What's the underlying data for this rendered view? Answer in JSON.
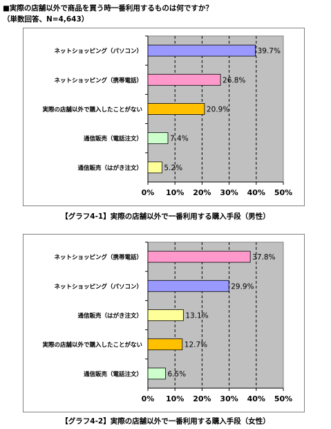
{
  "header": {
    "title": "■実際の店舗以外で商品を買う時一番利用するものは何ですか？",
    "subtitle": "（単数回答、N=4,643）"
  },
  "captions": {
    "male": "【グラフ4-1】実際の店舗以外で一番利用する購入手段（男性）",
    "female": "【グラフ4-2】実際の店舗以外で一番利用する購入手段（女性）"
  },
  "colors": {
    "plot_bg": "#c0c0c0",
    "pc": "#9999ff",
    "mobile": "#ff99cc",
    "none": "#ffc000",
    "phone_order": "#ccffcc",
    "postcard_order": "#ffff99"
  },
  "chart_data": [
    {
      "type": "bar",
      "orientation": "horizontal",
      "title": "【グラフ4-1】実際の店舗以外で一番利用する購入手段（男性）",
      "categories": [
        "ネットショッピング（パソコン）",
        "ネットショッピング（携帯電話）",
        "実際の店舗以外で購入したことがない",
        "通信販売（電話注文）",
        "通信販売（はがき注文）"
      ],
      "values": [
        39.7,
        26.8,
        20.9,
        7.4,
        5.2
      ],
      "value_labels": [
        "39.7%",
        "26.8%",
        "20.9%",
        "7.4%",
        "5.2%"
      ],
      "bar_colors": [
        "#9999ff",
        "#ff99cc",
        "#ffc000",
        "#ccffcc",
        "#ffff99"
      ],
      "xlim": [
        0,
        50
      ],
      "xticks": [
        "0%",
        "10%",
        "20%",
        "30%",
        "40%",
        "50%"
      ],
      "grid": true,
      "grid_style": "dashed vertical"
    },
    {
      "type": "bar",
      "orientation": "horizontal",
      "title": "【グラフ4-2】実際の店舗以外で一番利用する購入手段（女性）",
      "categories": [
        "ネットショッピング（携帯電話）",
        "ネットショッピング（パソコン）",
        "通信販売（はがき注文）",
        "実際の店舗以外で購入したことがない",
        "通信販売（電話注文）"
      ],
      "values": [
        37.8,
        29.9,
        13.1,
        12.7,
        6.5
      ],
      "value_labels": [
        "37.8%",
        "29.9%",
        "13.1%",
        "12.7%",
        "6.5%"
      ],
      "bar_colors": [
        "#ff99cc",
        "#9999ff",
        "#ffff99",
        "#ffc000",
        "#ccffcc"
      ],
      "xlim": [
        0,
        50
      ],
      "xticks": [
        "0%",
        "10%",
        "20%",
        "30%",
        "40%",
        "50%"
      ],
      "grid": true,
      "grid_style": "dashed vertical"
    }
  ]
}
